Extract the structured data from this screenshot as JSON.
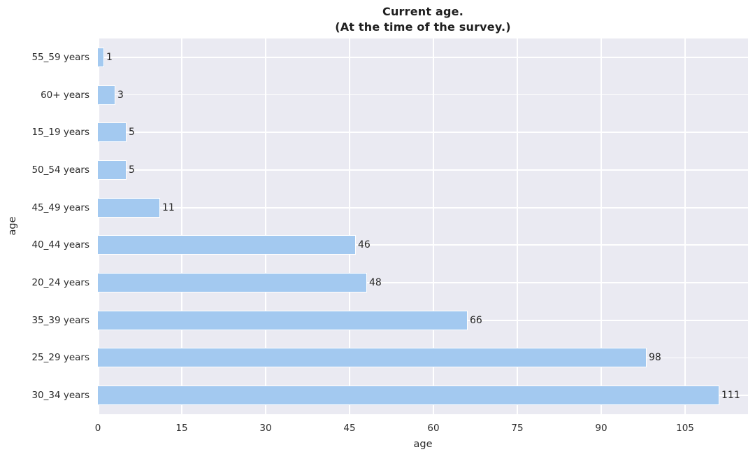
{
  "chart_data": {
    "type": "bar",
    "orientation": "horizontal",
    "title_line1": "Current age.",
    "title_line2": "(At the time of the survey.)",
    "xlabel": "age",
    "ylabel": "age",
    "categories": [
      "55_59 years",
      "60+ years",
      "15_19 years",
      "50_54 years",
      "45_49 years",
      "40_44 years",
      "20_24 years",
      "35_39 years",
      "25_29 years",
      "30_34 years"
    ],
    "values": [
      1,
      3,
      5,
      5,
      11,
      46,
      48,
      66,
      98,
      111
    ],
    "x_ticks": [
      0,
      15,
      30,
      45,
      60,
      75,
      90,
      105
    ],
    "xlim": [
      0,
      116.25
    ],
    "grid": true,
    "legend": "none",
    "colors": {
      "bar_fill": "#a3c9f0",
      "bar_edge": "#ffffff",
      "plot_background": "#eaeaf2",
      "gridline": "#ffffff",
      "text": "#262626"
    }
  }
}
